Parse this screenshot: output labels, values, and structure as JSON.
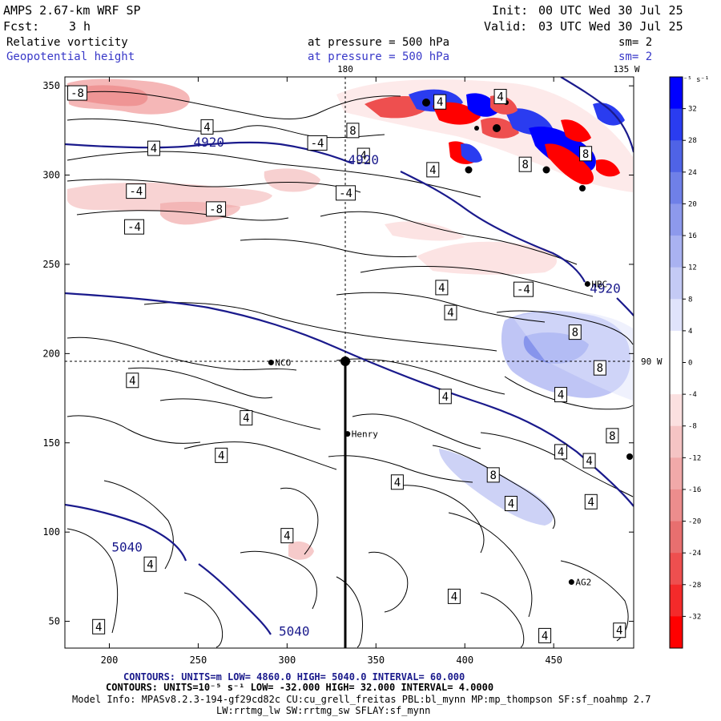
{
  "header": {
    "model_title": "AMPS 2.67-km WRF SP",
    "fcst_label": "Fcst:",
    "fcst_value": "3 h",
    "init_label": "Init:",
    "init_value": "00 UTC Wed 30 Jul 25",
    "valid_label": "Valid:",
    "valid_value": "03 UTC Wed 30 Jul 25",
    "field1_name": "Relative vorticity",
    "field1_level": "at pressure =  500 hPa",
    "field1_sm": "sm= 2",
    "field2_name": "Geopotential height",
    "field2_level": "at pressure =  500 hPa",
    "field2_sm": "sm= 2"
  },
  "map": {
    "top_labels": [
      "180",
      "135 W"
    ],
    "right_label": "90 W",
    "x_ticks": [
      200,
      250,
      300,
      350,
      400,
      450
    ],
    "y_ticks": [
      50,
      100,
      150,
      200,
      250,
      300,
      350
    ],
    "x_range": [
      175,
      495
    ],
    "y_range": [
      35,
      355
    ],
    "stations": [
      {
        "name": "NCO",
        "x": 291,
        "y": 195
      },
      {
        "name": "Henry",
        "x": 334,
        "y": 155
      },
      {
        "name": "HBC",
        "x": 469,
        "y": 239
      },
      {
        "name": "AG2",
        "x": 460,
        "y": 72
      }
    ],
    "height_labels": [
      {
        "text": "4920",
        "x": 256,
        "y": 316
      },
      {
        "text": "4920",
        "x": 343,
        "y": 306
      },
      {
        "text": "4920",
        "x": 479,
        "y": 234
      },
      {
        "text": "5040",
        "x": 210,
        "y": 89
      },
      {
        "text": "5040",
        "x": 304,
        "y": 42
      }
    ],
    "vorticity_labels": [
      {
        "text": "-8",
        "x": 182,
        "y": 346
      },
      {
        "text": "4",
        "x": 255,
        "y": 327
      },
      {
        "text": "-4",
        "x": 317,
        "y": 318
      },
      {
        "text": "4",
        "x": 225,
        "y": 315
      },
      {
        "text": "4",
        "x": 386,
        "y": 341
      },
      {
        "text": "8",
        "x": 337,
        "y": 325
      },
      {
        "text": "4",
        "x": 343,
        "y": 311
      },
      {
        "text": "4",
        "x": 382,
        "y": 303
      },
      {
        "text": "4",
        "x": 420,
        "y": 344
      },
      {
        "text": "-4",
        "x": 215,
        "y": 291
      },
      {
        "text": "-8",
        "x": 260,
        "y": 281
      },
      {
        "text": "-4",
        "x": 214,
        "y": 271
      },
      {
        "text": "-4",
        "x": 333,
        "y": 290
      },
      {
        "text": "8",
        "x": 434,
        "y": 306
      },
      {
        "text": "8",
        "x": 468,
        "y": 312
      },
      {
        "text": "4",
        "x": 387,
        "y": 237
      },
      {
        "text": "-4",
        "x": 433,
        "y": 236
      },
      {
        "text": "4",
        "x": 392,
        "y": 223
      },
      {
        "text": "8",
        "x": 462,
        "y": 212
      },
      {
        "text": "8",
        "x": 476,
        "y": 192
      },
      {
        "text": "4",
        "x": 213,
        "y": 185
      },
      {
        "text": "4",
        "x": 389,
        "y": 176
      },
      {
        "text": "4",
        "x": 454,
        "y": 177
      },
      {
        "text": "4",
        "x": 277,
        "y": 164
      },
      {
        "text": "8",
        "x": 483,
        "y": 154
      },
      {
        "text": "4",
        "x": 454,
        "y": 145
      },
      {
        "text": "4",
        "x": 470,
        "y": 140
      },
      {
        "text": "4",
        "x": 263,
        "y": 143
      },
      {
        "text": "8",
        "x": 416,
        "y": 132
      },
      {
        "text": "4",
        "x": 362,
        "y": 128
      },
      {
        "text": "4",
        "x": 426,
        "y": 116
      },
      {
        "text": "4",
        "x": 471,
        "y": 117
      },
      {
        "text": "4",
        "x": 300,
        "y": 98
      },
      {
        "text": "4",
        "x": 223,
        "y": 82
      },
      {
        "text": "4",
        "x": 394,
        "y": 64
      },
      {
        "text": "4",
        "x": 194,
        "y": 47
      },
      {
        "text": "4",
        "x": 445,
        "y": 42
      },
      {
        "text": "4",
        "x": 487,
        "y": 45
      }
    ]
  },
  "colorbar": {
    "unit_label": "10⁻⁵ s⁻¹",
    "levels": [
      -36,
      -32,
      -28,
      -24,
      -20,
      -16,
      -12,
      -8,
      -4,
      0,
      4,
      8,
      12,
      16,
      20,
      24,
      28,
      32,
      36
    ],
    "tick_labels": [
      "32",
      "28",
      "24",
      "20",
      "16",
      "12",
      "8",
      "4",
      "0",
      "-4",
      "-8",
      "-12",
      "-16",
      "-20",
      "-24",
      "-28",
      "-32"
    ],
    "colors_top_to_bottom": [
      "#0000ff",
      "#2a3cf0",
      "#4f63e6",
      "#6f80e8",
      "#8d99ec",
      "#a9b2f1",
      "#c4caf5",
      "#e0e3fb",
      "#ffffff",
      "#ffffff",
      "#fbe0e0",
      "#f5c4c4",
      "#f1a9a9",
      "#ec8d8d",
      "#e86f6f",
      "#ee4f4f",
      "#f42a2a",
      "#ff0000"
    ]
  },
  "footer": {
    "line1": "CONTOURS:  UNITS=m  LOW=  4860.0       HIGH=  5040.0       INTERVAL=  60.000",
    "line2": "CONTOURS:  UNITS=10⁻⁵ s⁻¹  LOW= -32.000      HIGH=  32.000      INTERVAL=  4.0000",
    "line3": "Model Info: MPASv8.2.3-194-gf29cd82c CU:cu_grell_freitas PBL:bl_mynn MP:mp_thompson SF:sf_noahmp 2.7",
    "line4": "LW:rrtmg_lw SW:rrtmg_sw SFLAY:sf_mynn"
  },
  "colors": {
    "height_contour": "#1a1a8c",
    "header_blue": "#3838c8",
    "footer_blue": "#1a1a8c",
    "black": "#000000"
  }
}
